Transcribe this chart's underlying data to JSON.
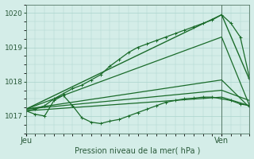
{
  "title": "",
  "xlabel": "Pression niveau de la mer( hPa )",
  "ylim": [
    1016.6,
    1020.2
  ],
  "xlim": [
    0,
    48
  ],
  "yticks": [
    1017,
    1018,
    1019,
    1020
  ],
  "xtick_positions": [
    0,
    42
  ],
  "xtick_labels": [
    "Jeu",
    "Ven"
  ],
  "vline_x": 42,
  "background_color": "#d4ede8",
  "grid_color": "#aad4cc",
  "line_color": "#1a6b2a",
  "marker_color": "#1a6b2a",
  "series": [
    {
      "x": [
        0,
        42,
        48
      ],
      "y": [
        1017.15,
        1017.55,
        1017.3
      ],
      "marker": false,
      "linewidth": 0.9
    },
    {
      "x": [
        0,
        42,
        48
      ],
      "y": [
        1017.2,
        1017.75,
        1017.45
      ],
      "marker": false,
      "linewidth": 0.9
    },
    {
      "x": [
        0,
        42,
        48
      ],
      "y": [
        1017.2,
        1018.05,
        1017.25
      ],
      "marker": false,
      "linewidth": 0.9
    },
    {
      "x": [
        0,
        42,
        48
      ],
      "y": [
        1017.2,
        1019.3,
        1017.3
      ],
      "marker": false,
      "linewidth": 0.9
    },
    {
      "x": [
        0,
        42,
        48
      ],
      "y": [
        1017.2,
        1019.95,
        1018.05
      ],
      "marker": false,
      "linewidth": 1.0
    },
    {
      "x": [
        0,
        2,
        4,
        6,
        8,
        10,
        12,
        14,
        16,
        18,
        20,
        22,
        24,
        26,
        28,
        30,
        32,
        34,
        36,
        38,
        40,
        42,
        44,
        46,
        48
      ],
      "y": [
        1017.15,
        1017.05,
        1017.0,
        1017.45,
        1017.6,
        1017.3,
        1016.95,
        1016.82,
        1016.78,
        1016.85,
        1016.9,
        1017.0,
        1017.1,
        1017.2,
        1017.3,
        1017.4,
        1017.45,
        1017.5,
        1017.52,
        1017.55,
        1017.55,
        1017.5,
        1017.45,
        1017.35,
        1017.3
      ],
      "marker": true,
      "linewidth": 0.9
    },
    {
      "x": [
        0,
        2,
        4,
        6,
        8,
        10,
        12,
        14,
        16,
        18,
        20,
        22,
        24,
        26,
        28,
        30,
        32,
        34,
        36,
        38,
        40,
        42,
        44,
        46,
        48
      ],
      "y": [
        1017.15,
        1017.2,
        1017.3,
        1017.5,
        1017.65,
        1017.8,
        1017.9,
        1018.05,
        1018.2,
        1018.45,
        1018.65,
        1018.85,
        1019.0,
        1019.1,
        1019.2,
        1019.3,
        1019.4,
        1019.5,
        1019.6,
        1019.7,
        1019.8,
        1019.95,
        1019.7,
        1019.3,
        1018.1
      ],
      "marker": true,
      "linewidth": 0.9
    }
  ]
}
